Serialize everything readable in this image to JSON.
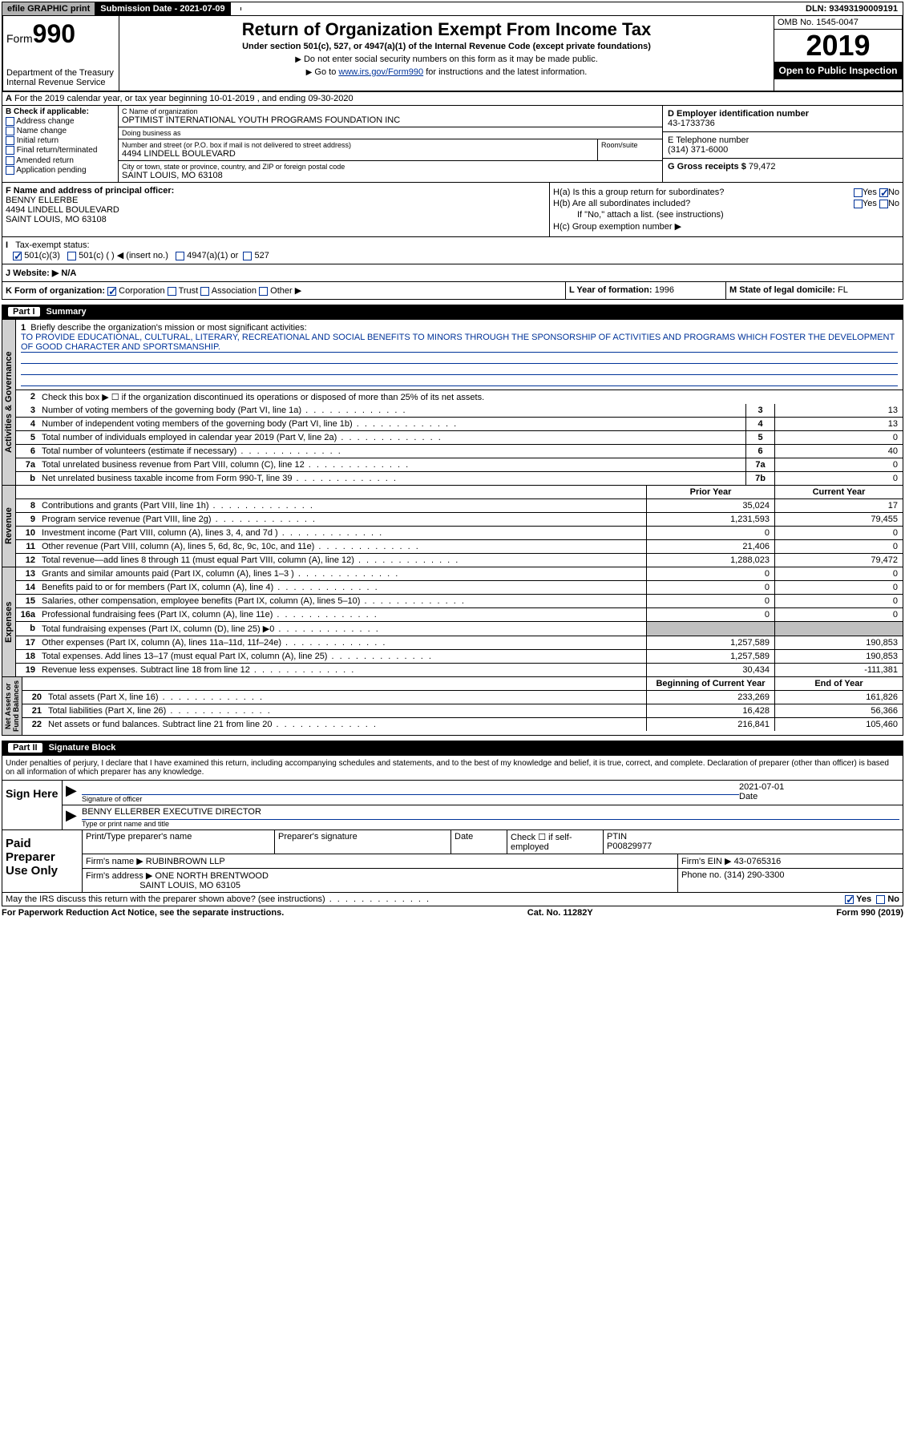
{
  "topbar": {
    "efile": "efile GRAPHIC print",
    "sub_lbl": "Submission Date - ",
    "sub_date": "2021-07-09",
    "dln": "DLN: 93493190009191",
    "efile_bg": "#b0b0b0",
    "sub_lbl_bg": "#000000"
  },
  "header": {
    "form_word": "Form",
    "form_num": "990",
    "dept": "Department of the Treasury\nInternal Revenue Service",
    "title": "Return of Organization Exempt From Income Tax",
    "sub": "Under section 501(c), 527, or 4947(a)(1) of the Internal Revenue Code (except private foundations)",
    "note1": "Do not enter social security numbers on this form as it may be made public.",
    "note2_pre": "Go to ",
    "note2_link": "www.irs.gov/Form990",
    "note2_post": " for instructions and the latest information.",
    "omb": "OMB No. 1545-0047",
    "year": "2019",
    "pub_insp": "Open to Public Inspection"
  },
  "line_a": "For the 2019 calendar year, or tax year beginning 10-01-2019    , and ending 09-30-2020",
  "col_b": {
    "hdr": "B Check if applicable:",
    "items": [
      "Address change",
      "Name change",
      "Initial return",
      "Final return/terminated",
      "Amended return",
      "Application pending"
    ]
  },
  "col_c": {
    "name_lbl": "C Name of organization",
    "name": "OPTIMIST INTERNATIONAL YOUTH PROGRAMS FOUNDATION INC",
    "dba_lbl": "Doing business as",
    "dba": "",
    "addr_lbl": "Number and street (or P.O. box if mail is not delivered to street address)",
    "addr": "4494 LINDELL BOULEVARD",
    "room_lbl": "Room/suite",
    "city_lbl": "City or town, state or province, country, and ZIP or foreign postal code",
    "city": "SAINT LOUIS, MO  63108"
  },
  "col_de": {
    "d_lbl": "D Employer identification number",
    "d_val": "43-1733736",
    "e_lbl": "E Telephone number",
    "e_val": "(314) 371-6000",
    "g_lbl": "G Gross receipts $ ",
    "g_val": "79,472"
  },
  "sec_f": {
    "lbl": "F Name and address of principal officer:",
    "name": "BENNY ELLERBE",
    "addr1": "4494 LINDELL BOULEVARD",
    "addr2": "SAINT LOUIS, MO  63108"
  },
  "sec_h": {
    "ha": "H(a)  Is this a group return for subordinates?",
    "hb": "H(b)  Are all subordinates included?",
    "hb_note": "If \"No,\" attach a list. (see instructions)",
    "hc": "H(c)  Group exemption number ▶",
    "yes": "Yes",
    "no": "No"
  },
  "tax_status": {
    "lbl": "Tax-exempt status:",
    "o1": "501(c)(3)",
    "o2": "501(c) (  ) ◀ (insert no.)",
    "o3": "4947(a)(1) or",
    "o4": "527"
  },
  "website": {
    "lbl": "J   Website: ▶",
    "val": " N/A"
  },
  "klm": {
    "k": "K Form of organization:",
    "k_opts": [
      "Corporation",
      "Trust",
      "Association",
      "Other ▶"
    ],
    "l": "L Year of formation: ",
    "l_val": "1996",
    "m": "M State of legal domicile: ",
    "m_val": "FL"
  },
  "parts": {
    "p1": "Part I",
    "p1_t": "Summary",
    "p2": "Part II",
    "p2_t": "Signature Block"
  },
  "vtabs": {
    "ag": "Activities & Governance",
    "rev": "Revenue",
    "exp": "Expenses",
    "na": "Net Assets or\nFund Balances"
  },
  "summary": {
    "q1": "Briefly describe the organization's mission or most significant activities:",
    "mission": "TO PROVIDE EDUCATIONAL, CULTURAL, LITERARY, RECREATIONAL AND SOCIAL BENEFITS TO MINORS THROUGH THE SPONSORSHIP OF ACTIVITIES AND PROGRAMS WHICH FOSTER THE DEVELOPMENT OF GOOD CHARACTER AND SPORTSMANSHIP.",
    "q2": "Check this box ▶ ☐ if the organization discontinued its operations or disposed of more than 25% of its net assets.",
    "rows_ag": [
      {
        "n": "3",
        "t": "Number of voting members of the governing body (Part VI, line 1a)",
        "b": "3",
        "v": "13"
      },
      {
        "n": "4",
        "t": "Number of independent voting members of the governing body (Part VI, line 1b)",
        "b": "4",
        "v": "13"
      },
      {
        "n": "5",
        "t": "Total number of individuals employed in calendar year 2019 (Part V, line 2a)",
        "b": "5",
        "v": "0"
      },
      {
        "n": "6",
        "t": "Total number of volunteers (estimate if necessary)",
        "b": "6",
        "v": "40"
      },
      {
        "n": "7a",
        "t": "Total unrelated business revenue from Part VIII, column (C), line 12",
        "b": "7a",
        "v": "0"
      },
      {
        "n": "b",
        "t": "Net unrelated business taxable income from Form 990-T, line 39",
        "b": "7b",
        "v": "0"
      }
    ],
    "py": "Prior Year",
    "cy": "Current Year",
    "rows_rev": [
      {
        "n": "8",
        "t": "Contributions and grants (Part VIII, line 1h)",
        "p": "35,024",
        "c": "17"
      },
      {
        "n": "9",
        "t": "Program service revenue (Part VIII, line 2g)",
        "p": "1,231,593",
        "c": "79,455"
      },
      {
        "n": "10",
        "t": "Investment income (Part VIII, column (A), lines 3, 4, and 7d )",
        "p": "0",
        "c": "0"
      },
      {
        "n": "11",
        "t": "Other revenue (Part VIII, column (A), lines 5, 6d, 8c, 9c, 10c, and 11e)",
        "p": "21,406",
        "c": "0"
      },
      {
        "n": "12",
        "t": "Total revenue—add lines 8 through 11 (must equal Part VIII, column (A), line 12)",
        "p": "1,288,023",
        "c": "79,472"
      }
    ],
    "rows_exp": [
      {
        "n": "13",
        "t": "Grants and similar amounts paid (Part IX, column (A), lines 1–3 )",
        "p": "0",
        "c": "0"
      },
      {
        "n": "14",
        "t": "Benefits paid to or for members (Part IX, column (A), line 4)",
        "p": "0",
        "c": "0"
      },
      {
        "n": "15",
        "t": "Salaries, other compensation, employee benefits (Part IX, column (A), lines 5–10)",
        "p": "0",
        "c": "0"
      },
      {
        "n": "16a",
        "t": "Professional fundraising fees (Part IX, column (A), line 11e)",
        "p": "0",
        "c": "0"
      },
      {
        "n": "b",
        "t": "Total fundraising expenses (Part IX, column (D), line 25) ▶0",
        "p": "",
        "c": "",
        "shade": true
      },
      {
        "n": "17",
        "t": "Other expenses (Part IX, column (A), lines 11a–11d, 11f–24e)",
        "p": "1,257,589",
        "c": "190,853"
      },
      {
        "n": "18",
        "t": "Total expenses. Add lines 13–17 (must equal Part IX, column (A), line 25)",
        "p": "1,257,589",
        "c": "190,853"
      },
      {
        "n": "19",
        "t": "Revenue less expenses. Subtract line 18 from line 12",
        "p": "30,434",
        "c": "-111,381"
      }
    ],
    "boy": "Beginning of Current Year",
    "eoy": "End of Year",
    "rows_na": [
      {
        "n": "20",
        "t": "Total assets (Part X, line 16)",
        "p": "233,269",
        "c": "161,826"
      },
      {
        "n": "21",
        "t": "Total liabilities (Part X, line 26)",
        "p": "16,428",
        "c": "56,366"
      },
      {
        "n": "22",
        "t": "Net assets or fund balances. Subtract line 21 from line 20",
        "p": "216,841",
        "c": "105,460"
      }
    ]
  },
  "sig": {
    "para": "Under penalties of perjury, I declare that I have examined this return, including accompanying schedules and statements, and to the best of my knowledge and belief, it is true, correct, and complete. Declaration of preparer (other than officer) is based on all information of which preparer has any knowledge.",
    "here": "Sign Here",
    "sig_of": "Signature of officer",
    "date_lbl": "Date",
    "date": "2021-07-01",
    "name": "BENNY ELLERBER  EXECUTIVE DIRECTOR",
    "type_lbl": "Type or print name and title"
  },
  "prep": {
    "lbl": "Paid Preparer Use Only",
    "print_lbl": "Print/Type preparer's name",
    "sig_lbl": "Preparer's signature",
    "date_lbl": "Date",
    "check_lbl": "Check ☐ if self-employed",
    "ptin_lbl": "PTIN",
    "ptin": "P00829977",
    "firm_lbl": "Firm's name   ▶",
    "firm": "RUBINBROWN LLP",
    "ein_lbl": "Firm's EIN ▶",
    "ein": "43-0765316",
    "addr_lbl": "Firm's address ▶",
    "addr1": "ONE NORTH BRENTWOOD",
    "addr2": "SAINT LOUIS, MO  63105",
    "phone_lbl": "Phone no.",
    "phone": "(314) 290-3300"
  },
  "footer": {
    "discuss": "May the IRS discuss this return with the preparer shown above? (see instructions)",
    "yes": "Yes",
    "no": "No",
    "pra": "For Paperwork Reduction Act Notice, see the separate instructions.",
    "cat": "Cat. No. 11282Y",
    "form": "Form 990 (2019)"
  },
  "colors": {
    "link": "#003399",
    "shade": "#c0c0c0",
    "vtab": "#d0d0d0"
  }
}
